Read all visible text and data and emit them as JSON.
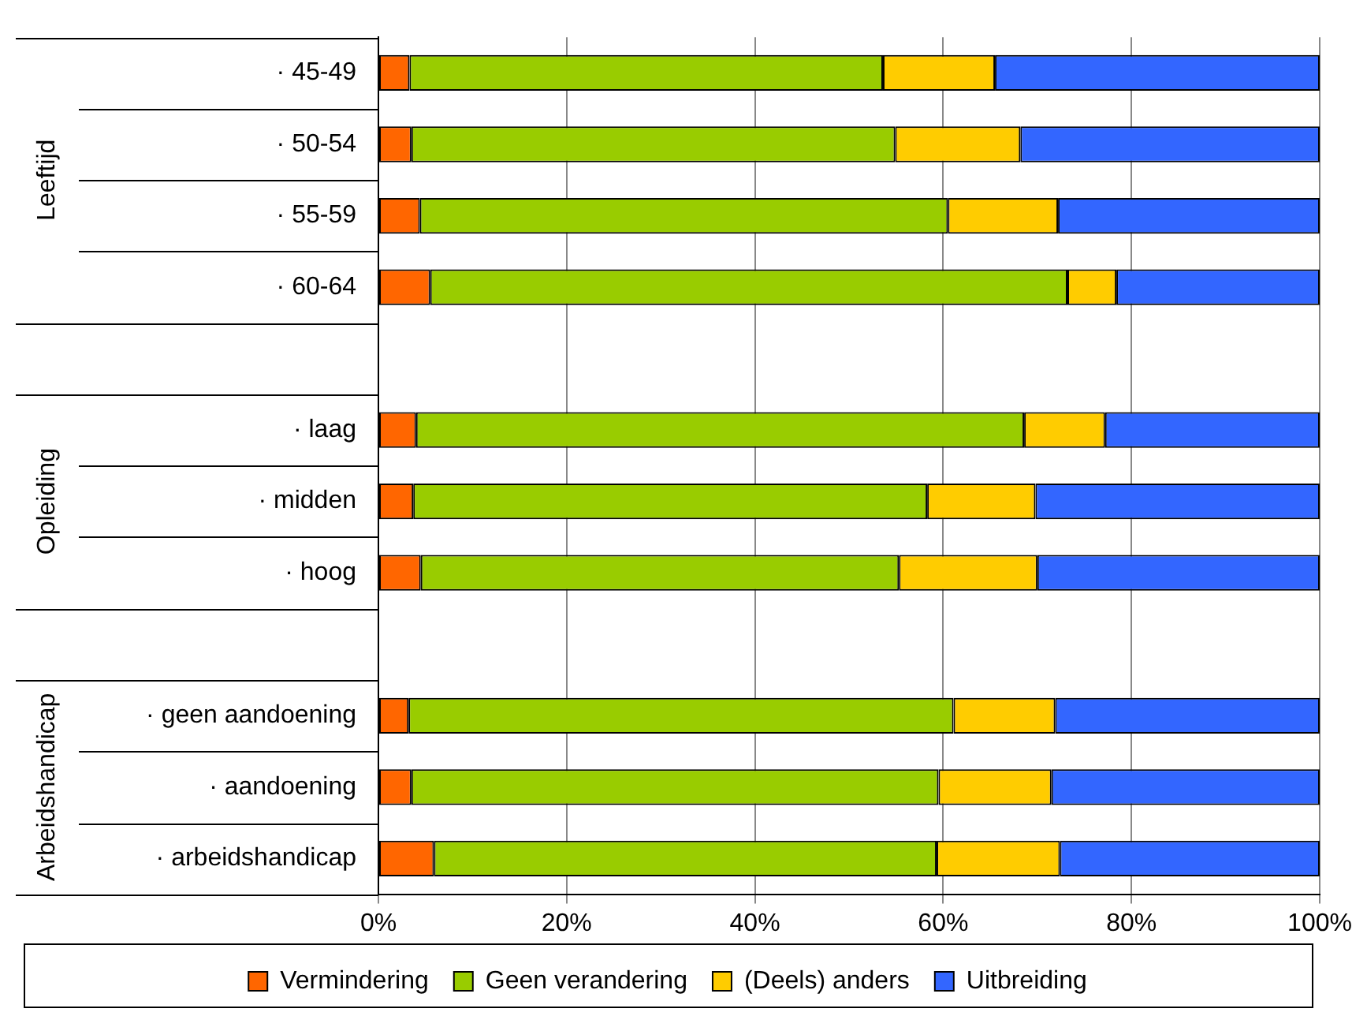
{
  "chart_data": {
    "type": "bar",
    "orientation": "horizontal",
    "stacked": true,
    "categories": [
      "· 45-49",
      "· 50-54",
      "· 55-59",
      "· 60-64",
      null,
      "· laag",
      "· midden",
      "· hoog",
      null,
      "· geen aandoening",
      "· aandoening",
      "· arbeidshandicap"
    ],
    "series": [
      {
        "name": "Vermindering",
        "color": "#ff6600",
        "values": [
          3.3,
          3.5,
          4.4,
          5.5,
          null,
          4.0,
          3.7,
          4.5,
          null,
          3.2,
          3.5,
          5.9
        ]
      },
      {
        "name": "Geen verandering",
        "color": "#99cc00",
        "values": [
          50.3,
          51.4,
          56.1,
          67.7,
          null,
          64.6,
          54.6,
          50.8,
          null,
          57.9,
          56.0,
          53.4
        ]
      },
      {
        "name": "(Deels) anders",
        "color": "#ffcc00",
        "values": [
          11.9,
          13.3,
          11.7,
          5.2,
          null,
          8.6,
          11.5,
          14.7,
          null,
          10.8,
          12.0,
          13.1
        ]
      },
      {
        "name": "Uitbreiding",
        "color": "#3366ff",
        "values": [
          34.5,
          31.8,
          27.8,
          21.6,
          null,
          22.8,
          30.2,
          30.0,
          null,
          28.1,
          28.5,
          27.6
        ]
      }
    ],
    "xlim": [
      0,
      100
    ],
    "xticks": [
      {
        "value": 0,
        "label": "0%"
      },
      {
        "value": 20,
        "label": "20%"
      },
      {
        "value": 40,
        "label": "40%"
      },
      {
        "value": 60,
        "label": "60%"
      },
      {
        "value": 80,
        "label": "80%"
      },
      {
        "value": 100,
        "label": "100%"
      }
    ],
    "annotations": [
      "Leeftijd",
      "Opleiding",
      "Arbeidshandicap"
    ],
    "grid": "x",
    "legend": "bottom"
  }
}
